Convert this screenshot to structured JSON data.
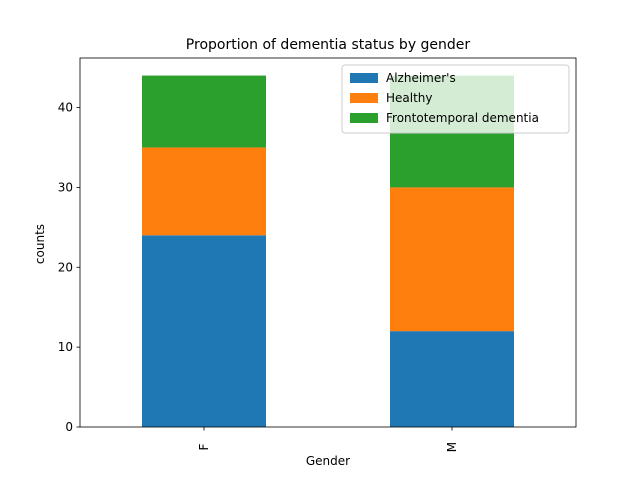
{
  "chart_data": {
    "type": "bar",
    "stacked": true,
    "title": "Proportion of dementia status by gender",
    "xlabel": "Gender",
    "ylabel": "counts",
    "categories": [
      "F",
      "M"
    ],
    "series": [
      {
        "name": "Alzheimer's",
        "values": [
          24,
          12
        ],
        "color": "#1f77b4"
      },
      {
        "name": "Healthy",
        "values": [
          11,
          18
        ],
        "color": "#ff7f0e"
      },
      {
        "name": "Frontotemporal dementia",
        "values": [
          9,
          14
        ],
        "color": "#2ca02c"
      }
    ],
    "ylim": [
      0,
      46.2
    ],
    "yticks": [
      0,
      10,
      20,
      30,
      40
    ],
    "grid": false,
    "legend_position": "top-right"
  }
}
